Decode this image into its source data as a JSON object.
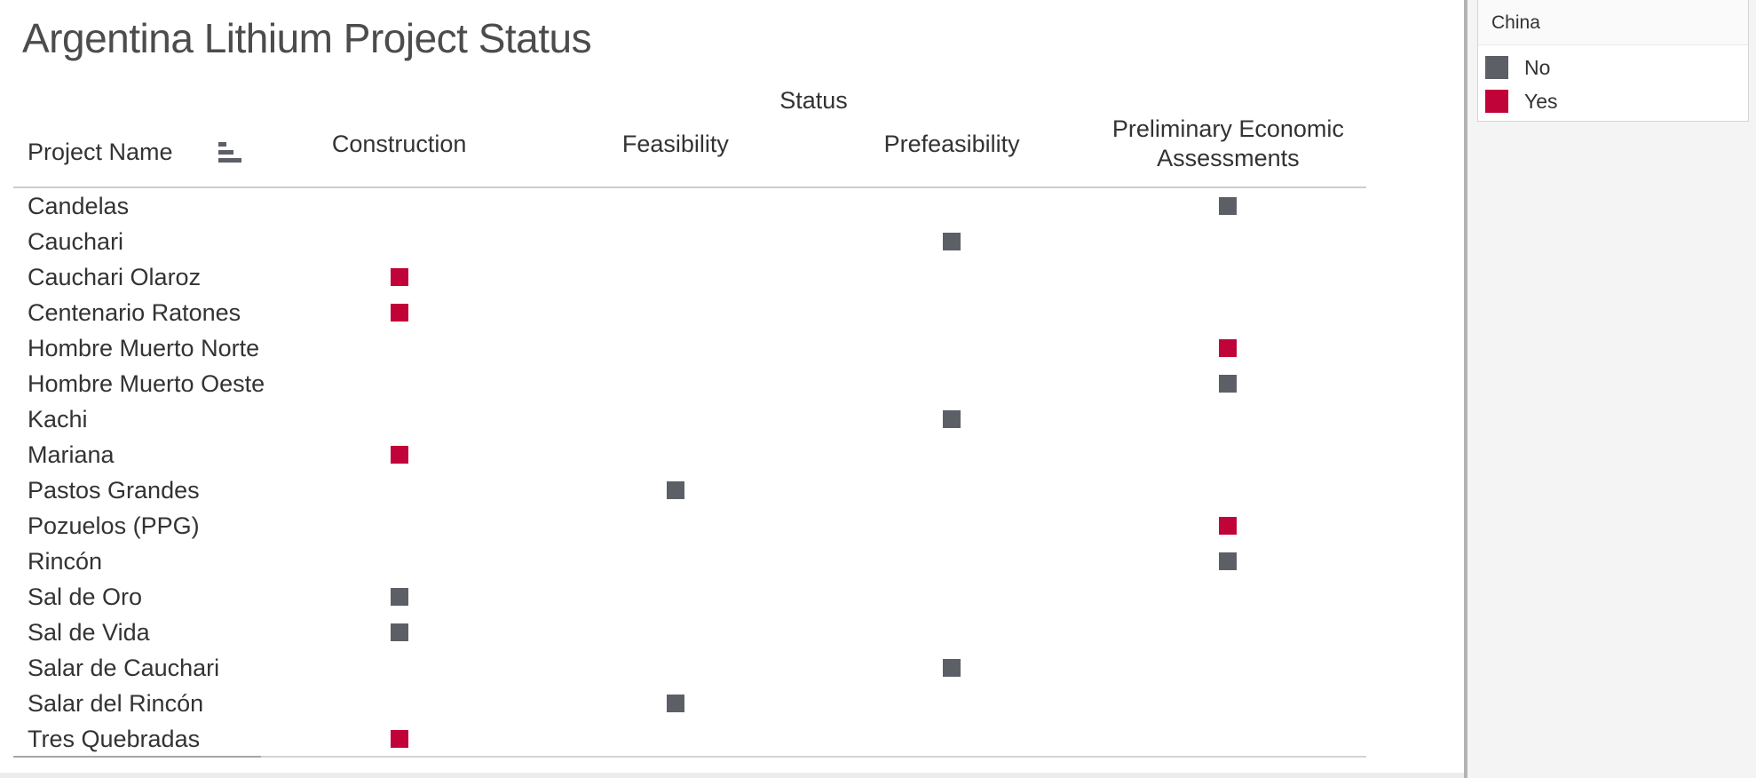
{
  "chart_data": {
    "type": "table",
    "title": "Argentina Lithium Project Status",
    "status_axis_label": "Status",
    "row_header_label": "Project Name",
    "columns": [
      "Construction",
      "Feasibility",
      "Prefeasibility",
      "Preliminary Economic Assessments"
    ],
    "legend": {
      "title": "China",
      "entries": [
        {
          "label": "No",
          "color": "#5c5f66"
        },
        {
          "label": "Yes",
          "color": "#c00339"
        }
      ]
    },
    "rows": [
      {
        "project": "Candelas",
        "status": "Preliminary Economic Assessments",
        "china": "No"
      },
      {
        "project": "Cauchari",
        "status": "Prefeasibility",
        "china": "No"
      },
      {
        "project": "Cauchari Olaroz",
        "status": "Construction",
        "china": "Yes"
      },
      {
        "project": "Centenario Ratones",
        "status": "Construction",
        "china": "Yes"
      },
      {
        "project": "Hombre Muerto Norte",
        "status": "Preliminary Economic Assessments",
        "china": "Yes"
      },
      {
        "project": "Hombre Muerto Oeste",
        "status": "Preliminary Economic Assessments",
        "china": "No"
      },
      {
        "project": "Kachi",
        "status": "Prefeasibility",
        "china": "No"
      },
      {
        "project": "Mariana",
        "status": "Construction",
        "china": "Yes"
      },
      {
        "project": "Pastos Grandes",
        "status": "Feasibility",
        "china": "No"
      },
      {
        "project": "Pozuelos (PPG)",
        "status": "Preliminary Economic Assessments",
        "china": "Yes"
      },
      {
        "project": "Rincón",
        "status": "Preliminary Economic Assessments",
        "china": "No"
      },
      {
        "project": "Sal de Oro",
        "status": "Construction",
        "china": "No"
      },
      {
        "project": "Sal de Vida",
        "status": "Construction",
        "china": "No"
      },
      {
        "project": "Salar de Cauchari",
        "status": "Prefeasibility",
        "china": "No"
      },
      {
        "project": "Salar del Rincón",
        "status": "Feasibility",
        "china": "No"
      },
      {
        "project": "Tres Quebradas",
        "status": "Construction",
        "china": "Yes"
      }
    ]
  }
}
